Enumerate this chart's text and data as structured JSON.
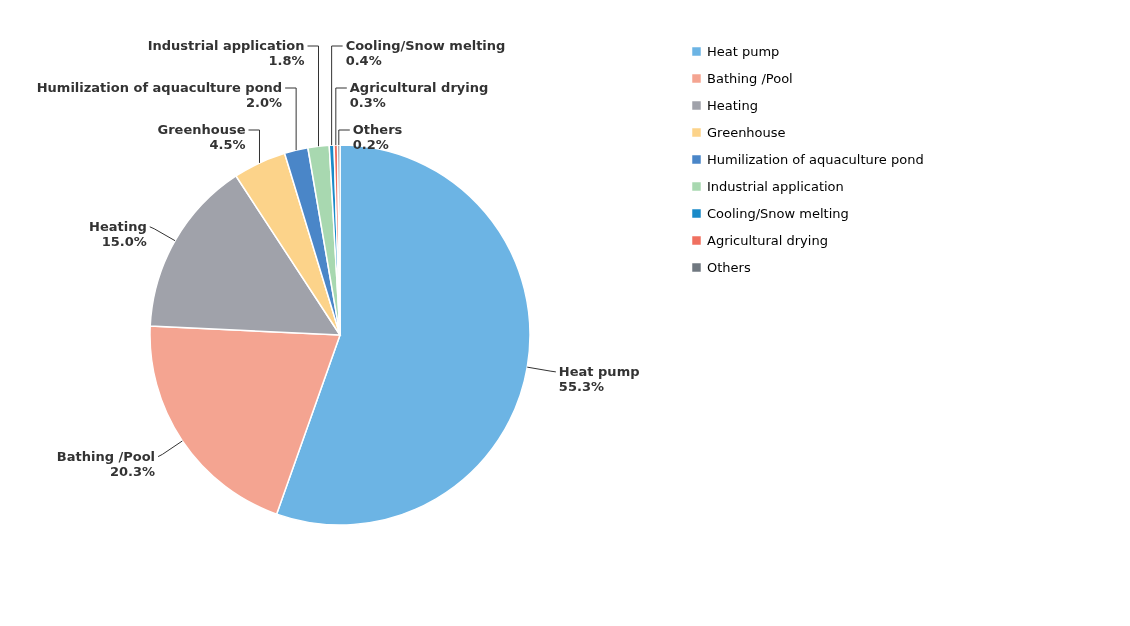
{
  "chart_data": {
    "type": "pie",
    "categories": [
      "Heat pump",
      "Bathing /Pool",
      "Heating",
      "Greenhouse",
      "Humilization of aquaculture pond",
      "Industrial application",
      "Cooling/Snow melting",
      "Agricultural drying",
      "Others"
    ],
    "values": [
      55.3,
      20.3,
      15.0,
      4.5,
      2.0,
      1.8,
      0.4,
      0.3,
      0.2
    ],
    "value_labels": [
      "55.3%",
      "20.3%",
      "15.0%",
      "4.5%",
      "2.0%",
      "1.8%",
      "0.4%",
      "0.3%",
      "0.2%"
    ],
    "colors": [
      "#6cb4e4",
      "#f4a491",
      "#a0a2aa",
      "#fcd38a",
      "#4a86c8",
      "#a8d8b0",
      "#1a8ac8",
      "#f07060",
      "#707880"
    ],
    "legend": "right"
  }
}
